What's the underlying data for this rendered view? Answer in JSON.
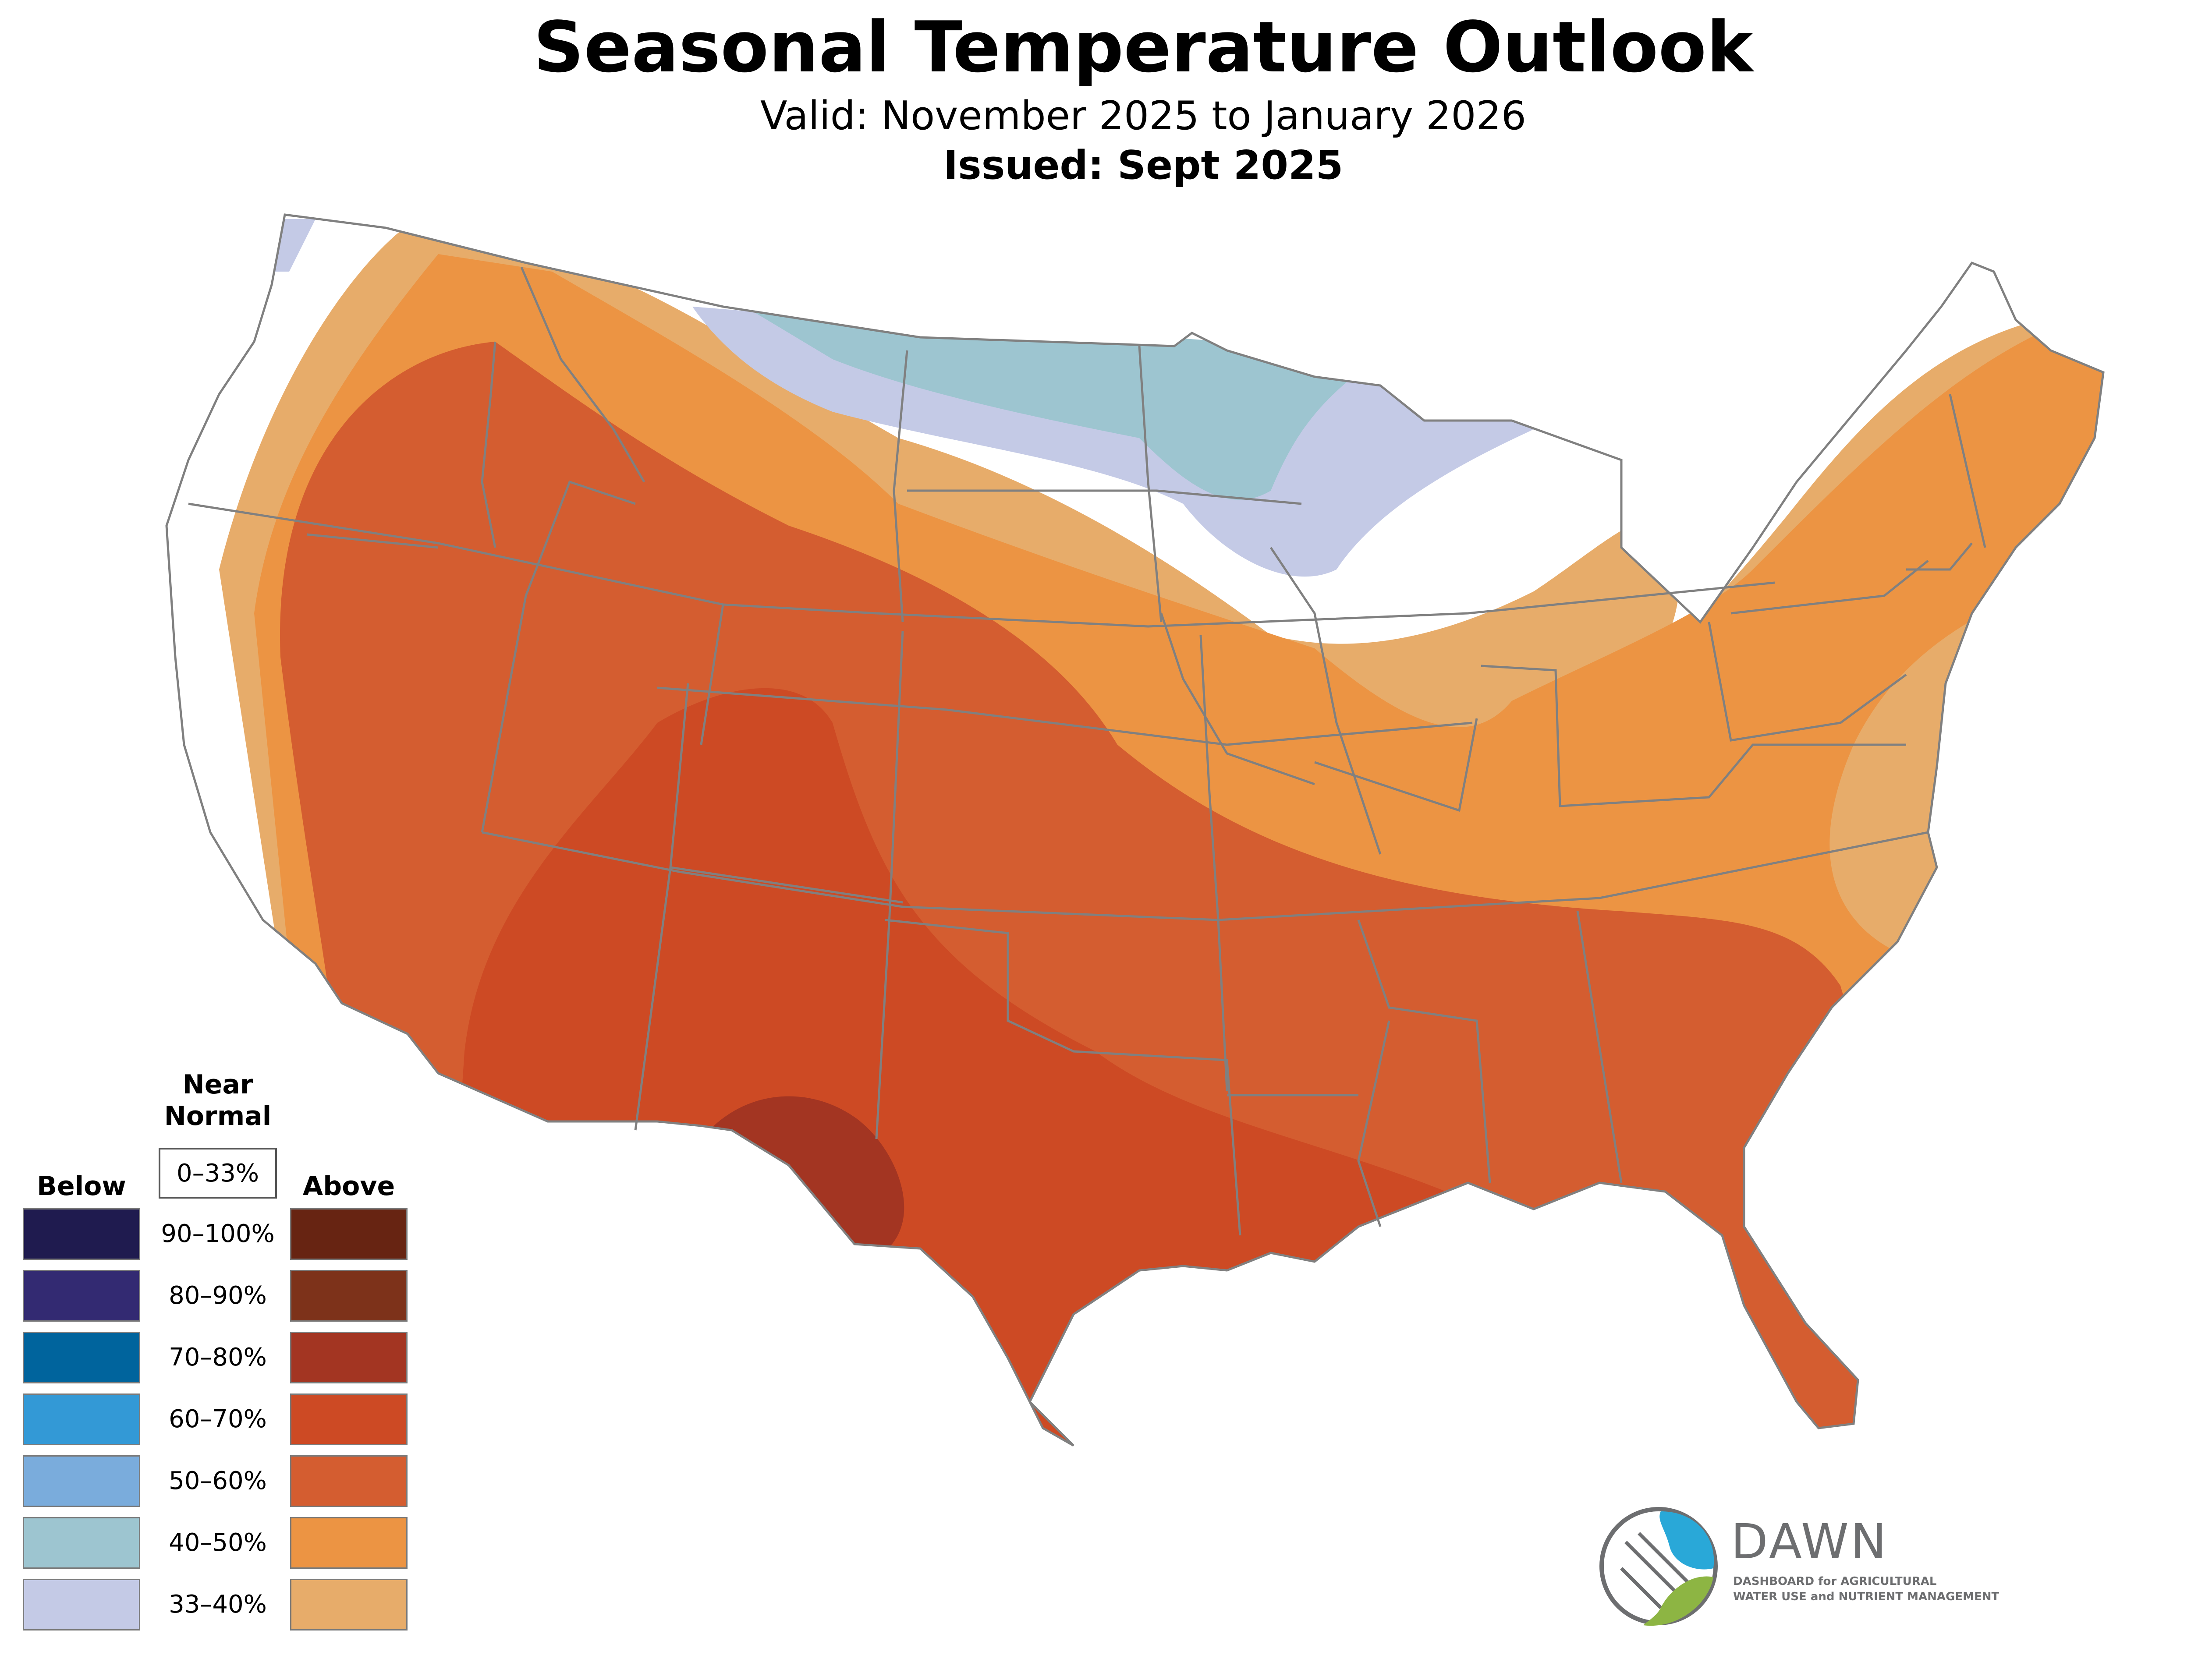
{
  "title": "Seasonal Temperature Outlook",
  "subtitle": "Valid: November 2025 to January 2026",
  "issued": "Issued: Sept 2025",
  "legend": {
    "below_label": "Below",
    "near_label": "Near Normal",
    "above_label": "Above",
    "near_range": "0–33%",
    "rows": [
      {
        "range": "90–100%",
        "below": "#1f1b4f",
        "above": "#672412"
      },
      {
        "range": "80–90%",
        "below": "#332a72",
        "above": "#7d321a"
      },
      {
        "range": "70–80%",
        "below": "#00649d",
        "above": "#a33522"
      },
      {
        "range": "60–70%",
        "below": "#3399d6",
        "above": "#cd4a24"
      },
      {
        "range": "50–60%",
        "below": "#7aacdc",
        "above": "#d45d30"
      },
      {
        "range": "40–50%",
        "below": "#9dc5d0",
        "above": "#ec9443"
      },
      {
        "range": "33–40%",
        "below": "#c4cae6",
        "above": "#e7ac6a"
      }
    ]
  },
  "map_colors": {
    "above_33_40": "#e7ac6a",
    "above_40_50": "#ec9443",
    "above_50_60": "#d45d30",
    "above_60_70": "#cd4a24",
    "above_70_80": "#a33522",
    "below_33_40": "#c4cae6",
    "below_40_50": "#9dc5d0",
    "near_normal": "#ffffff",
    "border": "#808080"
  },
  "logo": {
    "name": "DAWN",
    "line1": "DASHBOARD for AGRICULTURAL",
    "line2": "WATER USE and NUTRIENT MANAGEMENT",
    "blue": "#29a8d8",
    "green": "#8db543",
    "gray": "#6d6e70"
  }
}
